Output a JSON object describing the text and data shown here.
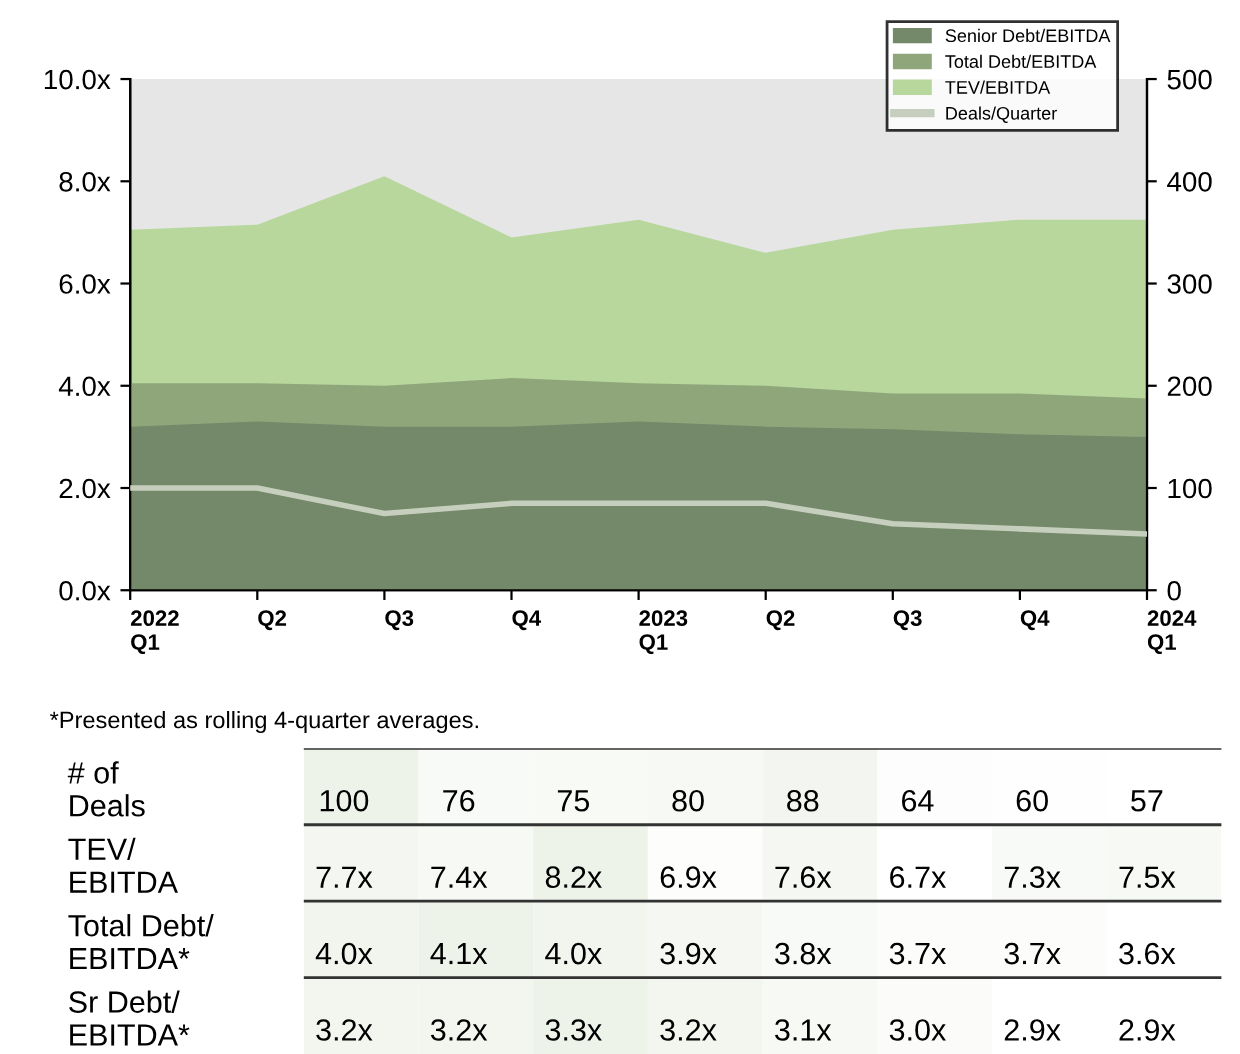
{
  "chart_data": [
    {
      "type": "area",
      "categories": [
        "2022\nQ1",
        "Q2",
        "Q3",
        "Q4",
        "2023\nQ1",
        "Q2",
        "Q3",
        "Q4",
        "2024\nQ1"
      ],
      "series": [
        {
          "name": "Senior Debt/EBITDA",
          "color": "#74886a",
          "values": [
            3.2,
            3.3,
            3.2,
            3.2,
            3.3,
            3.2,
            3.15,
            3.05,
            3.0
          ]
        },
        {
          "name": "Total Debt/EBITDA",
          "color": "#8fa67b",
          "values": [
            4.05,
            4.05,
            4.0,
            4.15,
            4.05,
            4.0,
            3.85,
            3.85,
            3.75
          ]
        },
        {
          "name": "TEV/EBITDA",
          "color": "#b7d79c",
          "values": [
            7.05,
            7.15,
            8.1,
            6.9,
            7.25,
            6.6,
            7.05,
            7.25,
            7.25
          ]
        },
        {
          "name": "Deals/Quarter",
          "type": "line",
          "axis": "y2",
          "color": "#c6cfbd",
          "values": [
            100,
            100,
            75,
            85,
            85,
            85,
            65,
            60,
            55
          ]
        }
      ],
      "ylim": [
        0,
        10
      ],
      "yticks": [
        {
          "value": 0,
          "label": "0.0x"
        },
        {
          "value": 2,
          "label": "2.0x"
        },
        {
          "value": 4,
          "label": "4.0x"
        },
        {
          "value": 6,
          "label": "6.0x"
        },
        {
          "value": 8,
          "label": "8.0x"
        },
        {
          "value": 10,
          "label": "10.0x"
        }
      ],
      "y2lim": [
        0,
        500
      ],
      "y2ticks": [
        0,
        100,
        200,
        300,
        400,
        500
      ],
      "legend": "top right",
      "grid": false,
      "annotations": [
        "*Presented as rolling 4-quarter averages."
      ]
    },
    {
      "type": "heatmap",
      "categories": [
        null,
        null,
        null,
        null,
        null,
        null,
        null,
        null
      ],
      "y_categories": [
        "# of\nDeals",
        "TEV/\nEBITDA",
        "Total Debt/\nEBITDA*",
        "Sr Debt/\nEBITDA*"
      ],
      "cells": [
        [
          100,
          76,
          75,
          80,
          88,
          64,
          60,
          57
        ],
        [
          7.7,
          7.4,
          8.2,
          6.9,
          7.6,
          6.7,
          7.3,
          7.5
        ],
        [
          4.0,
          4.1,
          4.0,
          3.9,
          3.8,
          3.7,
          3.7,
          3.6
        ],
        [
          3.2,
          3.2,
          3.3,
          3.2,
          3.1,
          3.0,
          2.9,
          2.9
        ]
      ],
      "cell_labels": [
        [
          "100",
          "76",
          "75",
          "80",
          "88",
          "64",
          "60",
          "57"
        ],
        [
          "7.7x",
          "7.4x",
          "8.2x",
          "6.9x",
          "7.6x",
          "6.7x",
          "7.3x",
          "7.5x"
        ],
        [
          "4.0x",
          "4.1x",
          "4.0x",
          "3.9x",
          "3.8x",
          "3.7x",
          "3.7x",
          "3.6x"
        ],
        [
          "3.2x",
          "3.2x",
          "3.3x",
          "3.2x",
          "3.1x",
          "3.0x",
          "2.9x",
          "2.9x"
        ]
      ]
    }
  ]
}
